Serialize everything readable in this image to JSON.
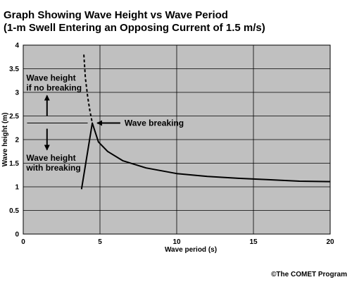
{
  "title_line1": "Graph Showing Wave Height vs Wave Period",
  "title_line2": "(1-m Swell Entering an Opposing Current of 1.5 m/s)",
  "credit": "©The COMET Program",
  "chart_data": {
    "type": "line",
    "xlabel": "Wave period (s)",
    "ylabel": "Wave height (m)",
    "xlim": [
      0,
      20
    ],
    "ylim": [
      0,
      4
    ],
    "xticks": [
      0,
      5,
      10,
      15,
      20
    ],
    "yticks": [
      0,
      0.5,
      1,
      1.5,
      2,
      2.5,
      3,
      3.5,
      4
    ],
    "grid": true,
    "background": "#c0c0c0",
    "series": [
      {
        "style": "solid",
        "x": [
          3.8,
          4.5,
          4.6,
          4.9,
          5.5,
          6.5,
          8,
          10,
          12,
          14,
          16,
          18,
          20
        ],
        "y": [
          0.95,
          2.35,
          2.25,
          1.95,
          1.75,
          1.55,
          1.4,
          1.28,
          1.22,
          1.18,
          1.15,
          1.12,
          1.11
        ]
      },
      {
        "style": "dashed",
        "x": [
          3.95,
          4.05,
          4.2,
          4.35,
          4.5
        ],
        "y": [
          3.8,
          3.3,
          2.9,
          2.6,
          2.35
        ]
      }
    ],
    "annotations": [
      {
        "text": "Wave breaking",
        "x": 6.6,
        "y": 2.35
      },
      {
        "lines": [
          "Wave height",
          "if no breaking"
        ],
        "x": 0.2,
        "y": 3.25
      },
      {
        "lines": [
          "Wave height",
          "with breaking"
        ],
        "x": 0.2,
        "y": 1.55
      }
    ]
  }
}
